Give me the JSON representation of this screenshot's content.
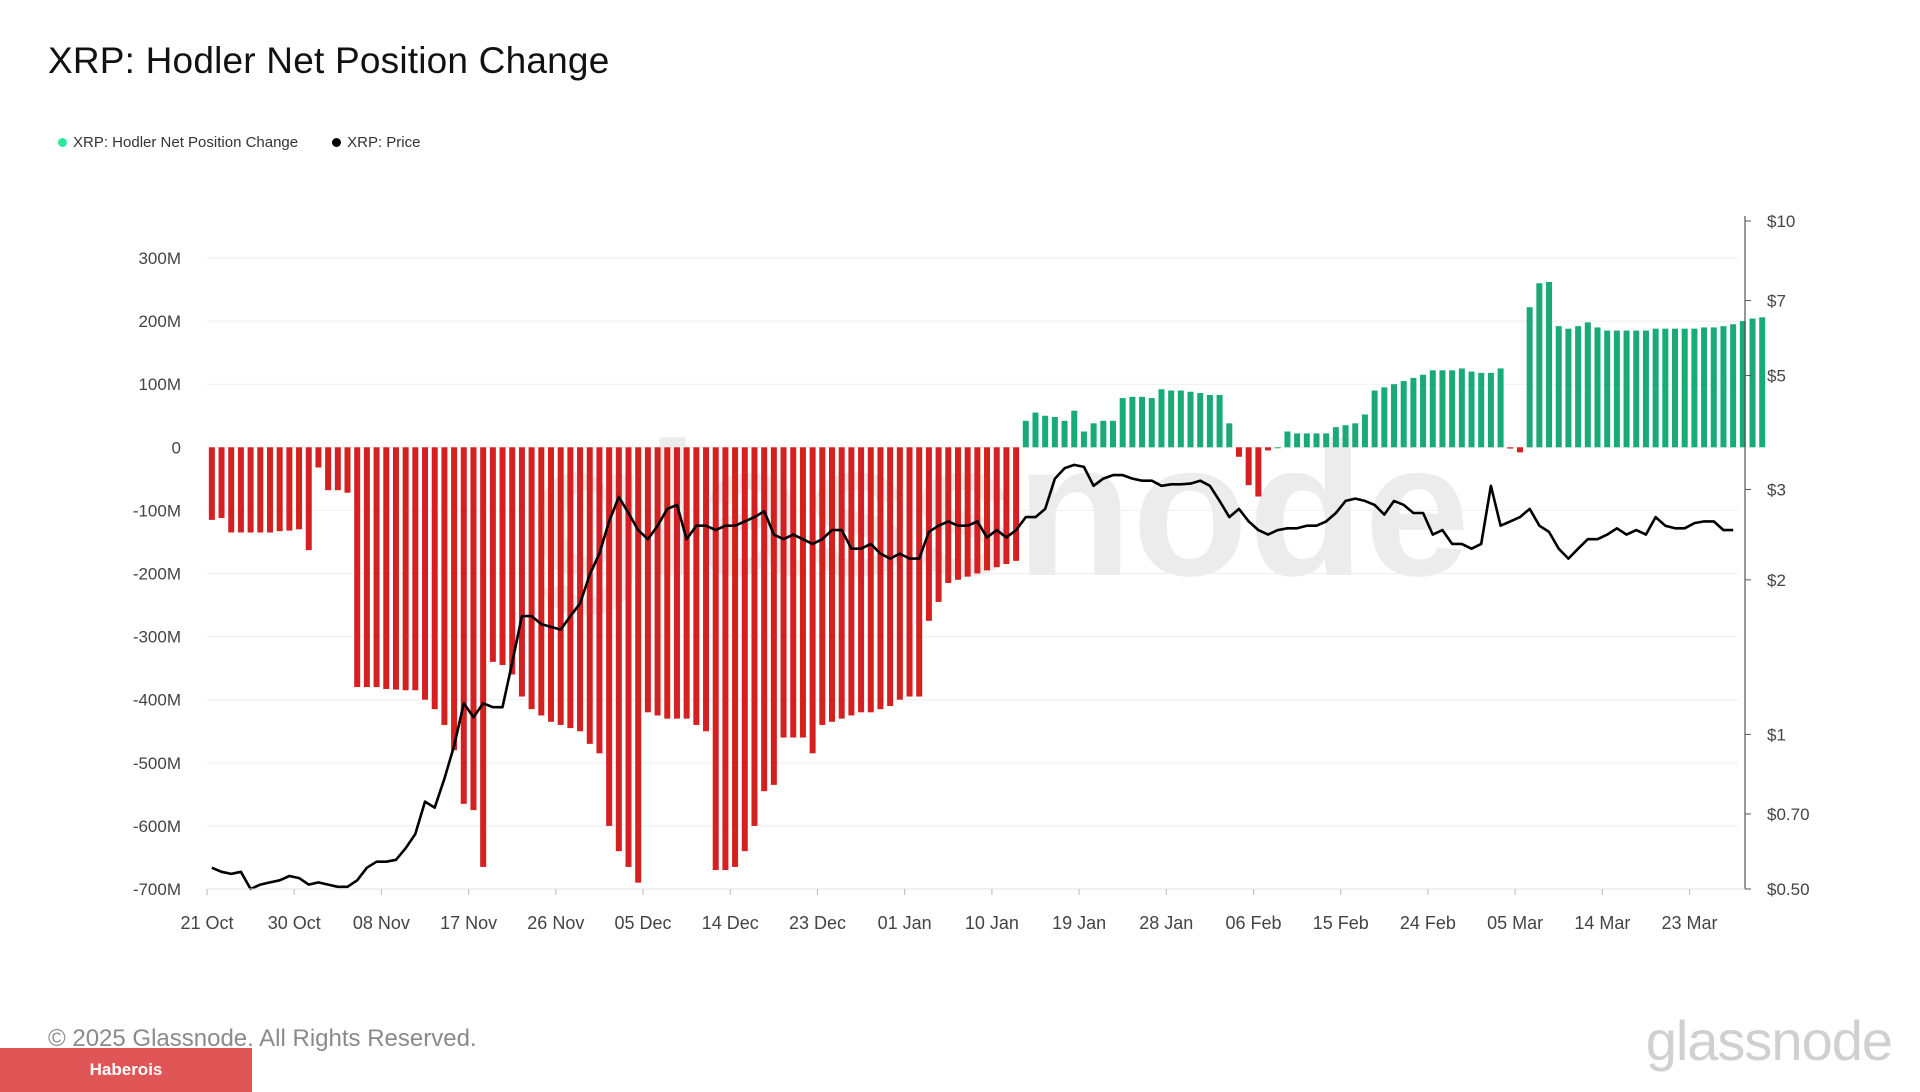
{
  "header": {
    "title": "XRP: Hodler Net Position Change"
  },
  "legend": [
    {
      "label": "XRP: Hodler Net Position Change",
      "color": "#2ee89a"
    },
    {
      "label": "XRP: Price",
      "color": "#000000"
    }
  ],
  "footer": {
    "copyright": "© 2025 Glassnode. All Rights Reserved.",
    "badge": "Haberois",
    "logo": "glassnode"
  },
  "watermark": "glassnode",
  "colors": {
    "positive": "#1aaa78",
    "negative": "#d42020",
    "price": "#000000",
    "grid": "#eeeeee"
  },
  "chart_data": {
    "type": "bar",
    "title": "XRP: Hodler Net Position Change",
    "xlim": [
      "2024-10-21",
      "2025-03-28"
    ],
    "x_ticks": [
      "21 Oct",
      "30 Oct",
      "08 Nov",
      "17 Nov",
      "26 Nov",
      "05 Dec",
      "14 Dec",
      "23 Dec",
      "01 Jan",
      "10 Jan",
      "19 Jan",
      "28 Jan",
      "06 Feb",
      "15 Feb",
      "24 Feb",
      "05 Mar",
      "14 Mar",
      "23 Mar"
    ],
    "y_left": {
      "ticks": [
        "300M",
        "200M",
        "100M",
        "0",
        "-100M",
        "-200M",
        "-300M",
        "-400M",
        "-500M",
        "-600M",
        "-700M"
      ],
      "values": [
        300,
        200,
        100,
        0,
        -100,
        -200,
        -300,
        -400,
        -500,
        -600,
        -700
      ],
      "ylim": [
        -790,
        300
      ],
      "unit": "M"
    },
    "y_right": {
      "scale": "log",
      "ticks": [
        "$10",
        "$7",
        "$5",
        "$3",
        "$2",
        "$1",
        "$0.70",
        "$0.50"
      ],
      "values": [
        10,
        7,
        5,
        3,
        2,
        1,
        0.7,
        0.5
      ],
      "ylim": [
        0.5,
        10
      ]
    },
    "grid": true,
    "legend_position": "top-left",
    "series": [
      {
        "name": "XRP: Hodler Net Position Change",
        "type": "bar",
        "values": [
          -115,
          -112,
          -135,
          -135,
          -135,
          -135,
          -135,
          -133,
          -132,
          -130,
          -163,
          -32,
          -68,
          -68,
          -72,
          -380,
          -380,
          -380,
          -383,
          -384,
          -385,
          -385,
          -400,
          -415,
          -440,
          -480,
          -565,
          -575,
          -665,
          -340,
          -345,
          -360,
          -395,
          -415,
          -425,
          -435,
          -440,
          -445,
          -450,
          -470,
          -485,
          -600,
          -640,
          -665,
          -690,
          -420,
          -425,
          -430,
          -430,
          -430,
          -440,
          -450,
          -670,
          -670,
          -665,
          -640,
          -600,
          -545,
          -535,
          -460,
          -460,
          -460,
          -485,
          -440,
          -435,
          -430,
          -425,
          -420,
          -420,
          -415,
          -410,
          -400,
          -395,
          -395,
          -275,
          -245,
          -215,
          -210,
          -205,
          -200,
          -195,
          -190,
          -185,
          -180,
          42,
          55,
          50,
          48,
          42,
          58,
          25,
          38,
          42,
          42,
          78,
          80,
          80,
          78,
          92,
          90,
          90,
          88,
          86,
          83,
          83,
          38,
          -15,
          -60,
          -78,
          -5,
          0,
          25,
          22,
          22,
          22,
          22,
          32,
          35,
          38,
          52,
          90,
          95,
          100,
          105,
          110,
          115,
          122,
          122,
          122,
          125,
          120,
          118,
          118,
          125,
          -2,
          -8,
          222,
          260,
          262,
          192,
          188,
          192,
          198,
          190,
          185,
          185,
          185,
          185,
          185,
          188,
          188,
          188,
          188,
          188,
          190,
          190,
          192,
          195,
          200,
          204,
          206
        ]
      },
      {
        "name": "XRP: Price",
        "type": "line",
        "axis": "right",
        "values": [
          0.55,
          0.54,
          0.535,
          0.54,
          0.5,
          0.51,
          0.515,
          0.52,
          0.53,
          0.525,
          0.51,
          0.515,
          0.51,
          0.505,
          0.505,
          0.52,
          0.55,
          0.565,
          0.565,
          0.57,
          0.6,
          0.64,
          0.74,
          0.72,
          0.82,
          0.95,
          1.15,
          1.08,
          1.15,
          1.13,
          1.13,
          1.38,
          1.7,
          1.7,
          1.64,
          1.62,
          1.6,
          1.7,
          1.8,
          2.05,
          2.25,
          2.6,
          2.9,
          2.7,
          2.5,
          2.4,
          2.55,
          2.75,
          2.8,
          2.4,
          2.55,
          2.55,
          2.5,
          2.55,
          2.55,
          2.6,
          2.65,
          2.72,
          2.45,
          2.4,
          2.45,
          2.4,
          2.35,
          2.4,
          2.5,
          2.5,
          2.3,
          2.3,
          2.35,
          2.25,
          2.2,
          2.25,
          2.2,
          2.2,
          2.48,
          2.55,
          2.6,
          2.55,
          2.55,
          2.6,
          2.42,
          2.5,
          2.42,
          2.5,
          2.65,
          2.65,
          2.75,
          3.15,
          3.3,
          3.35,
          3.32,
          3.05,
          3.15,
          3.2,
          3.2,
          3.15,
          3.12,
          3.12,
          3.05,
          3.07,
          3.07,
          3.08,
          3.12,
          3.05,
          2.85,
          2.65,
          2.75,
          2.6,
          2.5,
          2.45,
          2.5,
          2.52,
          2.52,
          2.55,
          2.55,
          2.6,
          2.7,
          2.85,
          2.88,
          2.85,
          2.8,
          2.68,
          2.85,
          2.8,
          2.7,
          2.7,
          2.45,
          2.5,
          2.35,
          2.35,
          2.3,
          2.35,
          3.05,
          2.55,
          2.6,
          2.65,
          2.75,
          2.55,
          2.48,
          2.3,
          2.2,
          2.3,
          2.4,
          2.4,
          2.45,
          2.52,
          2.45,
          2.5,
          2.45,
          2.65,
          2.55,
          2.52,
          2.52,
          2.58,
          2.6,
          2.6,
          2.5,
          2.5
        ]
      }
    ]
  }
}
